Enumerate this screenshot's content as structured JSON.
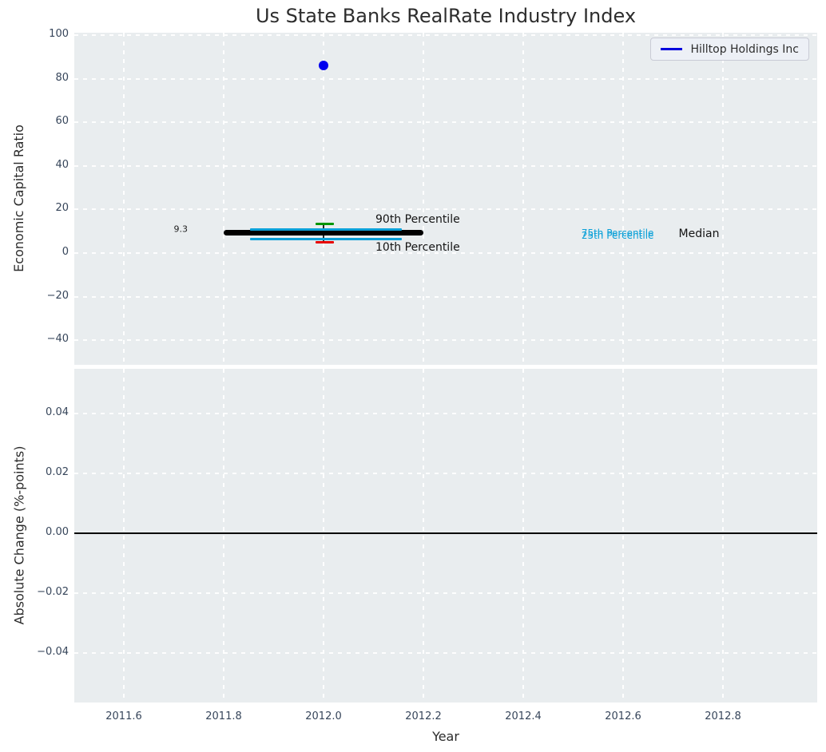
{
  "title": "Us State Banks RealRate Industry Index",
  "legend": {
    "label": "Hilltop Holdings Inc",
    "line_color": "#0000dd"
  },
  "colors": {
    "axes_background": "#e9edef",
    "grid": "#ffffff",
    "tick_label": "#36455a",
    "scatter_point": "#0000ee",
    "median": "#000000",
    "band_cyan": "#0aa0d8",
    "p90_green": "#009500",
    "p10_red": "#e50000"
  },
  "chart_data": [
    {
      "type": "scatter",
      "panel": "top",
      "title": "Us State Banks RealRate Industry Index",
      "ylabel": "Economic Capital Ratio",
      "xlim": [
        2011.5,
        2012.99
      ],
      "ylim": [
        -51,
        101
      ],
      "grid": true,
      "legend_position": "upper right",
      "yticks": {
        "values": [
          100,
          80,
          60,
          40,
          20,
          0,
          -20,
          -40
        ],
        "labels": [
          "100",
          "80",
          "60",
          "40",
          "20",
          "0",
          "−20",
          "−40"
        ]
      },
      "xticks": {
        "values": [
          2011.6,
          2011.8,
          2012.0,
          2012.2,
          2012.4,
          2012.6,
          2012.8
        ],
        "labels": [
          "2011.6",
          "2011.8",
          "2012.0",
          "2012.2",
          "2012.4",
          "2012.6",
          "2012.8"
        ]
      },
      "series": [
        {
          "name": "Hilltop Holdings Inc",
          "type": "scatter",
          "color": "#0000ee",
          "points": [
            {
              "x": 2012.0,
              "y": 86
            }
          ]
        }
      ],
      "industry_percentiles": {
        "x_center": 2012.0,
        "items": [
          {
            "name": "90th Percentile",
            "value": 13.2,
            "x_from": 2011.984,
            "x_to": 2012.02,
            "color": "#009500",
            "style": "tick"
          },
          {
            "name": "75th Percentile",
            "value": 10.8,
            "x_from": 2011.853,
            "x_to": 2012.157,
            "color": "#0aa0d8",
            "style": "band-edge"
          },
          {
            "name": "Median",
            "value": 9.3,
            "x_from": 2011.8,
            "x_to": 2012.2,
            "color": "#000000",
            "style": "thick"
          },
          {
            "name": "25th Percentile",
            "value": 6.4,
            "x_from": 2011.853,
            "x_to": 2012.157,
            "color": "#0aa0d8",
            "style": "band-edge"
          },
          {
            "name": "10th Percentile",
            "value": 4.9,
            "x_from": 2011.984,
            "x_to": 2012.02,
            "color": "#e50000",
            "style": "tick"
          }
        ],
        "whisker": {
          "x": 2012.0,
          "from": 4.9,
          "to": 13.2,
          "color": "#2a2a2a"
        }
      },
      "annotations": [
        {
          "id": "median-value",
          "text": "9.3",
          "x": 2011.714,
          "y": 11.0,
          "color": "#1f1f1f",
          "size": 11,
          "ha": "center"
        },
        {
          "id": "p90-label",
          "text": "90th Percentile",
          "x": 2012.104,
          "y": 15.4,
          "color": "#141414",
          "size": 14,
          "ha": "left"
        },
        {
          "id": "p10-label",
          "text": "10th Percentile",
          "x": 2012.104,
          "y": 2.7,
          "color": "#141414",
          "size": 14,
          "ha": "left"
        },
        {
          "id": "p75-label",
          "text": "75th Percentile",
          "x": 2012.589,
          "y": 9.2,
          "color": "#0aa0d8",
          "size": 12,
          "ha": "center"
        },
        {
          "id": "p25-label",
          "text": "25th Percentile",
          "x": 2012.589,
          "y": 8.2,
          "color": "#0aa0d8",
          "size": 12,
          "ha": "center"
        },
        {
          "id": "median-label",
          "text": "Median",
          "x": 2012.752,
          "y": 8.8,
          "color": "#141414",
          "size": 14,
          "ha": "center"
        }
      ]
    },
    {
      "type": "line",
      "panel": "bottom",
      "ylabel": "Absolute Change (%-points)",
      "xlabel": "Year",
      "xlim": [
        2011.5,
        2012.99
      ],
      "ylim": [
        -0.0555,
        0.0555
      ],
      "grid": true,
      "yticks": {
        "values": [
          0.04,
          0.02,
          0.0,
          -0.02,
          -0.04
        ],
        "labels": [
          "0.04",
          "0.02",
          "0.00",
          "−0.02",
          "−0.04"
        ]
      },
      "xticks": {
        "values": [
          2011.6,
          2011.8,
          2012.0,
          2012.2,
          2012.4,
          2012.6,
          2012.8
        ],
        "labels": [
          "2011.6",
          "2011.8",
          "2012.0",
          "2012.2",
          "2012.4",
          "2012.6",
          "2012.8"
        ]
      },
      "zero_line": {
        "value": 0.0,
        "color": "#000000"
      },
      "series": []
    }
  ]
}
